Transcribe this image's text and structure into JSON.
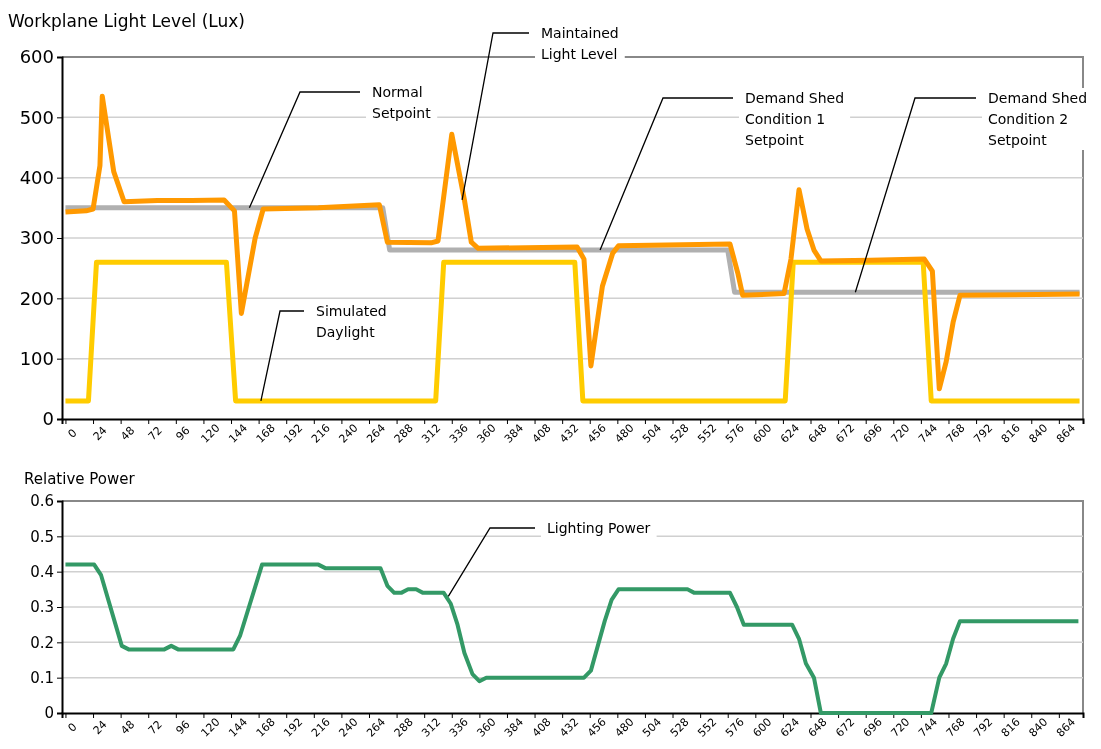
{
  "chart_data": [
    {
      "type": "line",
      "title": "Workplane Light Level (Lux)",
      "xlim": [
        -3,
        885
      ],
      "xticks": [
        0,
        24,
        48,
        72,
        96,
        120,
        144,
        168,
        192,
        216,
        240,
        264,
        288,
        312,
        336,
        360,
        384,
        408,
        432,
        456,
        480,
        504,
        528,
        552,
        576,
        600,
        624,
        648,
        672,
        696,
        720,
        744,
        768,
        792,
        816,
        840,
        864
      ],
      "ylim": [
        0,
        600
      ],
      "yticks": [
        0,
        100,
        200,
        300,
        400,
        500,
        600
      ],
      "grid": "y",
      "tick_labels": "xy",
      "series": [
        {
          "color": "#b0b0b0",
          "x": [
            0,
            276,
            282,
            576,
            582,
            882
          ],
          "values": [
            350,
            350,
            280,
            280,
            210,
            210
          ]
        },
        {
          "color": "#ffcc00",
          "x": [
            0,
            20,
            27,
            140,
            148,
            322,
            329,
            443,
            450,
            626,
            633,
            746,
            753,
            882
          ],
          "values": [
            30,
            30,
            260,
            260,
            30,
            30,
            260,
            260,
            30,
            30,
            260,
            260,
            30,
            30
          ]
        },
        {
          "color": "#ff9900",
          "x": [
            0,
            18,
            24,
            30,
            32,
            42,
            51,
            80,
            110,
            138,
            147,
            153,
            165,
            172,
            220,
            273,
            280,
            318,
            324,
            336,
            347,
            353,
            359,
            445,
            451,
            457,
            467,
            476,
            481,
            578,
            585,
            589,
            625,
            631,
            638,
            645,
            651,
            657,
            700,
            747,
            754,
            760,
            766,
            772,
            778,
            882
          ],
          "values": [
            343,
            345,
            348,
            420,
            535,
            410,
            360,
            362,
            362,
            363,
            345,
            175,
            300,
            348,
            350,
            355,
            293,
            292,
            295,
            472,
            363,
            293,
            283,
            285,
            265,
            88,
            220,
            275,
            287,
            290,
            240,
            205,
            208,
            265,
            380,
            315,
            280,
            262,
            263,
            265,
            245,
            50,
            95,
            160,
            205,
            207
          ]
        }
      ],
      "annotations": [
        {
          "text": "Normal Setpoint",
          "x": 160,
          "y": 350
        },
        {
          "text": "Maintained Light Level",
          "x": 345,
          "y": 363
        },
        {
          "text": "Demand Shed Condition 1 Setpoint",
          "x": 465,
          "y": 280
        },
        {
          "text": "Demand Shed Condition 2 Setpoint",
          "x": 687,
          "y": 210
        },
        {
          "text": "Simulated Daylight",
          "x": 170,
          "y": 30
        }
      ]
    },
    {
      "type": "line",
      "title": "Relative Power",
      "xlim": [
        -3,
        885
      ],
      "xticks": [
        0,
        24,
        48,
        72,
        96,
        120,
        144,
        168,
        192,
        216,
        240,
        264,
        288,
        312,
        336,
        360,
        384,
        408,
        432,
        456,
        480,
        504,
        528,
        552,
        576,
        600,
        624,
        648,
        672,
        696,
        720,
        744,
        768,
        792,
        816,
        840,
        864
      ],
      "ylim": [
        0,
        0.6
      ],
      "yticks": [
        0,
        0.1,
        0.2,
        0.3,
        0.4,
        0.5,
        0.6
      ],
      "grid": "y",
      "series": [
        {
          "color": "#339966",
          "x": [
            0,
            25,
            31,
            49,
            55,
            86,
            92,
            98,
            146,
            152,
            171,
            220,
            226,
            274,
            280,
            286,
            292,
            298,
            305,
            311,
            329,
            335,
            341,
            347,
            354,
            360,
            366,
            451,
            457,
            469,
            475,
            481,
            541,
            547,
            578,
            584,
            590,
            632,
            638,
            644,
            651,
            657,
            753,
            760,
            766,
            772,
            778,
            881
          ],
          "values": [
            0.42,
            0.42,
            0.39,
            0.19,
            0.18,
            0.18,
            0.19,
            0.18,
            0.18,
            0.22,
            0.42,
            0.42,
            0.41,
            0.41,
            0.36,
            0.34,
            0.34,
            0.35,
            0.35,
            0.34,
            0.34,
            0.31,
            0.25,
            0.17,
            0.11,
            0.09,
            0.1,
            0.1,
            0.12,
            0.26,
            0.32,
            0.35,
            0.35,
            0.34,
            0.34,
            0.3,
            0.25,
            0.25,
            0.21,
            0.14,
            0.1,
            0,
            0,
            0.1,
            0.14,
            0.21,
            0.26,
            0.26
          ]
        }
      ],
      "annotations": [
        {
          "text": "Lighting Power",
          "x": 333,
          "y": 0.33
        }
      ]
    }
  ]
}
